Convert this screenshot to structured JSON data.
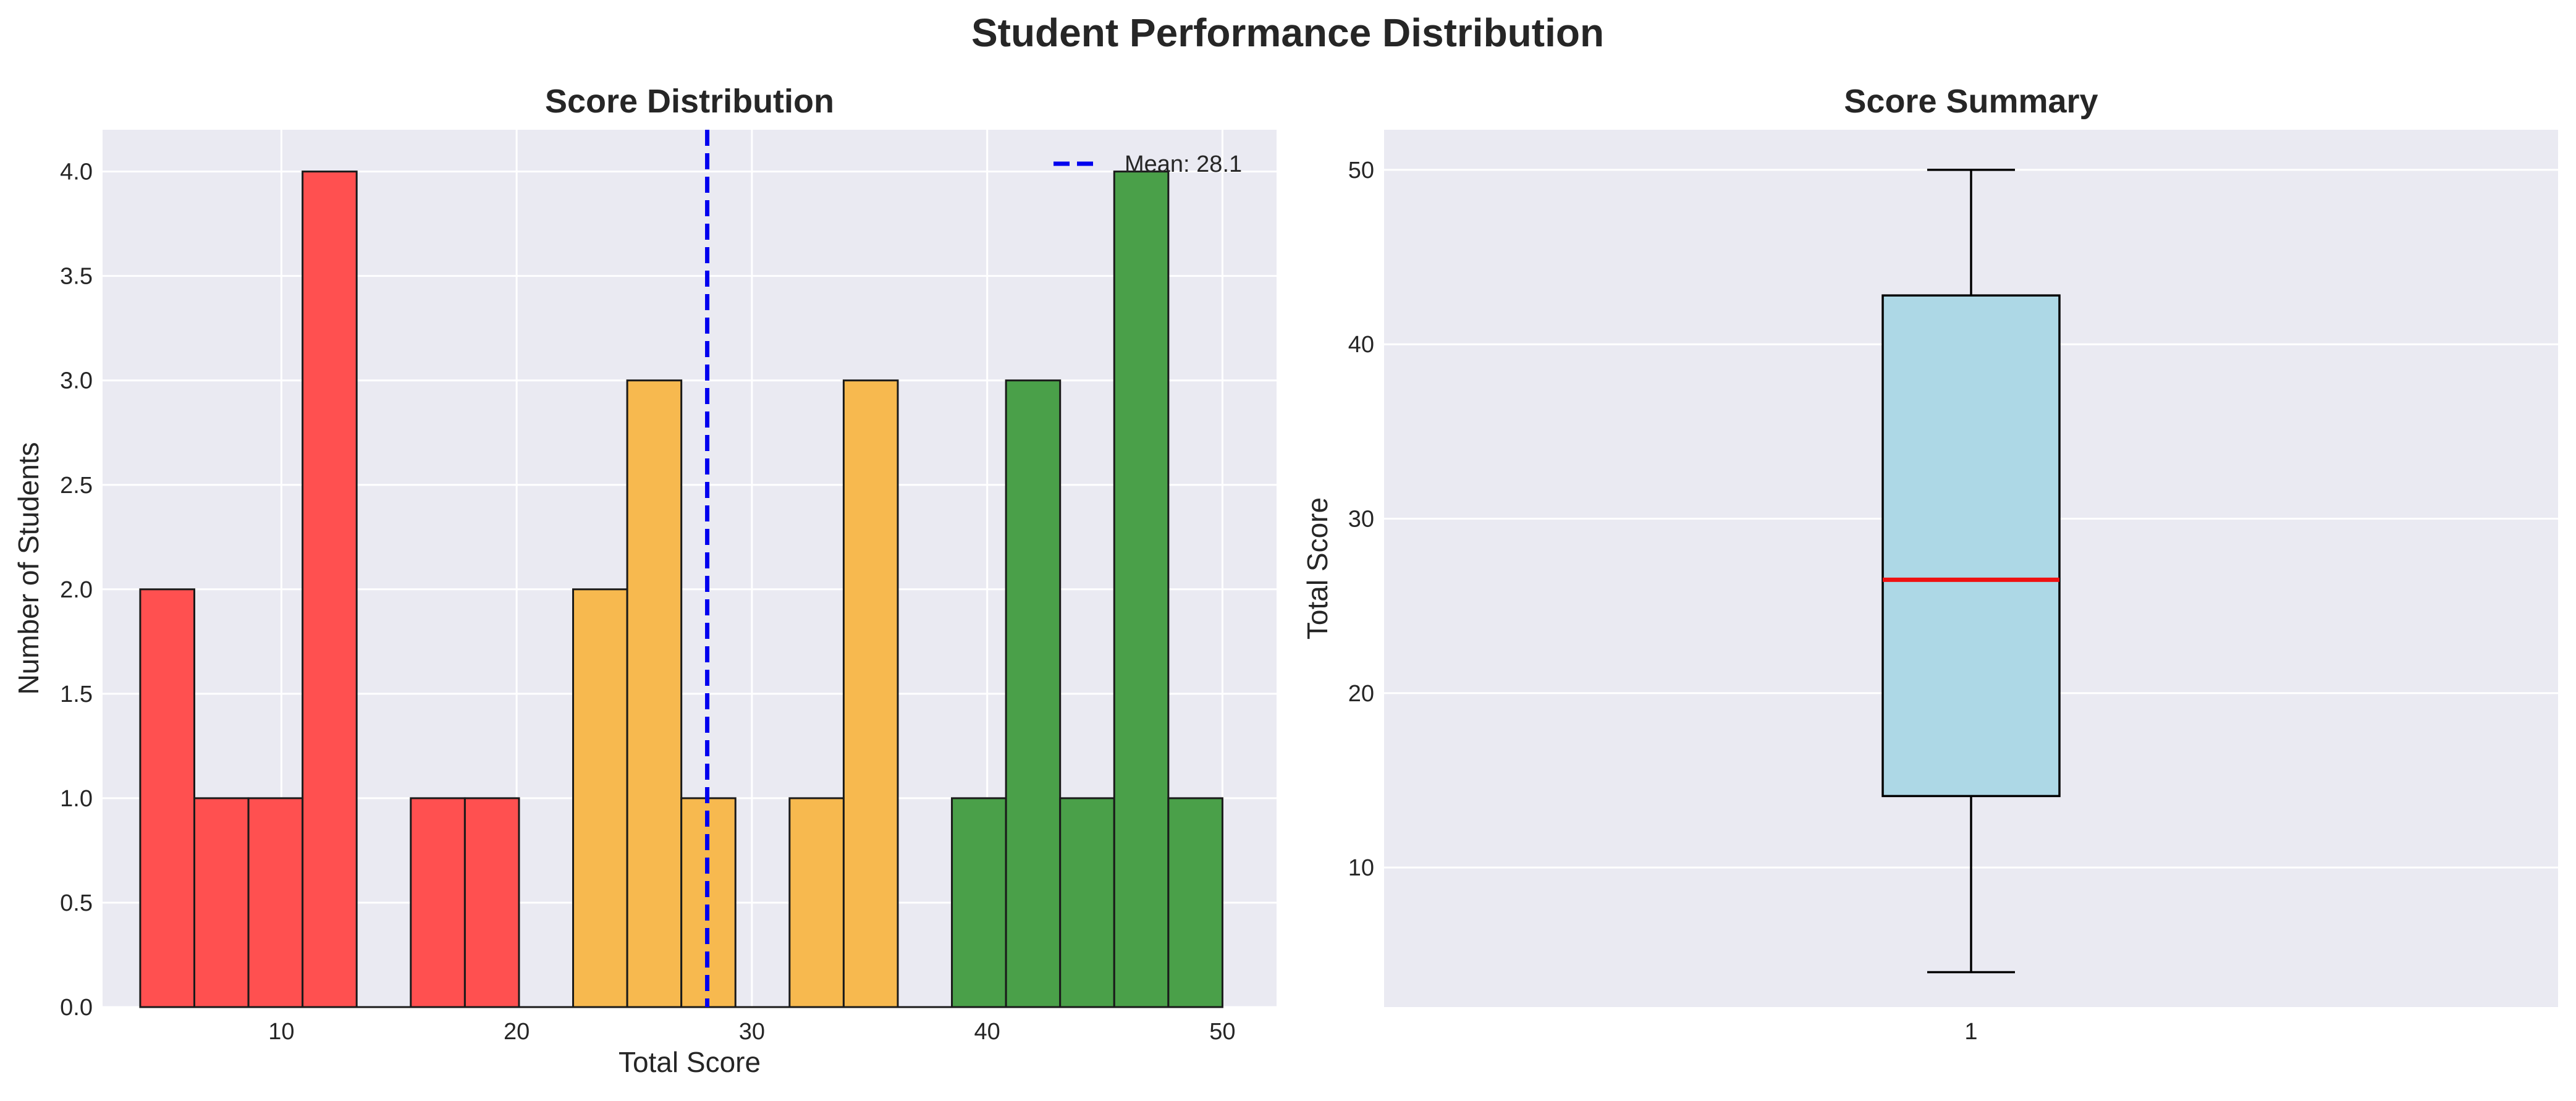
{
  "figure": {
    "suptitle": "Student Performance Distribution"
  },
  "colors": {
    "background": "#eaeaf2",
    "grid": "#ffffff",
    "low": "#ff4c4c",
    "mid": "#f7b84b",
    "high": "#469e45",
    "mean_line": "#0000ee",
    "box_fill": "#add8e6",
    "median": "#ee1111"
  },
  "chart_data": [
    {
      "type": "bar",
      "subtype": "histogram",
      "title": "Score Distribution",
      "xlabel": "Total Score",
      "ylabel": "Number of Students",
      "xlim": [
        2.4,
        52.3
      ],
      "ylim": [
        0,
        4.2
      ],
      "xticks": [
        "10",
        "20",
        "30",
        "40",
        "50"
      ],
      "xtick_values": [
        10,
        20,
        30,
        40,
        50
      ],
      "yticks": [
        "0.0",
        "0.5",
        "1.0",
        "1.5",
        "2.0",
        "2.5",
        "3.0",
        "3.5",
        "4.0"
      ],
      "ytick_values": [
        0,
        0.5,
        1,
        1.5,
        2,
        2.5,
        3,
        3.5,
        4
      ],
      "bins": [
        {
          "start": 4.0,
          "end": 6.3,
          "count": 2,
          "group": "low"
        },
        {
          "start": 6.3,
          "end": 8.6,
          "count": 1,
          "group": "low"
        },
        {
          "start": 8.6,
          "end": 10.9,
          "count": 1,
          "group": "low"
        },
        {
          "start": 10.9,
          "end": 13.2,
          "count": 4,
          "group": "low"
        },
        {
          "start": 13.2,
          "end": 15.5,
          "count": 0,
          "group": "low"
        },
        {
          "start": 15.5,
          "end": 17.8,
          "count": 1,
          "group": "low"
        },
        {
          "start": 17.8,
          "end": 20.1,
          "count": 1,
          "group": "low"
        },
        {
          "start": 20.1,
          "end": 22.4,
          "count": 0,
          "group": "low"
        },
        {
          "start": 22.4,
          "end": 24.7,
          "count": 2,
          "group": "mid"
        },
        {
          "start": 24.7,
          "end": 27.0,
          "count": 3,
          "group": "mid"
        },
        {
          "start": 27.0,
          "end": 29.3,
          "count": 1,
          "group": "mid"
        },
        {
          "start": 29.3,
          "end": 31.6,
          "count": 0,
          "group": "mid"
        },
        {
          "start": 31.6,
          "end": 33.9,
          "count": 1,
          "group": "mid"
        },
        {
          "start": 33.9,
          "end": 36.2,
          "count": 3,
          "group": "mid"
        },
        {
          "start": 36.2,
          "end": 38.5,
          "count": 0,
          "group": "mid"
        },
        {
          "start": 38.5,
          "end": 40.8,
          "count": 1,
          "group": "high"
        },
        {
          "start": 40.8,
          "end": 43.1,
          "count": 3,
          "group": "high"
        },
        {
          "start": 43.1,
          "end": 45.4,
          "count": 1,
          "group": "high"
        },
        {
          "start": 45.4,
          "end": 47.7,
          "count": 4,
          "group": "high"
        },
        {
          "start": 47.7,
          "end": 50.0,
          "count": 1,
          "group": "high"
        }
      ],
      "mean": 28.1,
      "legend": {
        "label": "Mean: 28.1",
        "placement": "top-right"
      },
      "grid": true
    },
    {
      "type": "box",
      "title": "Score Summary",
      "xlabel": "",
      "ylabel": "Total Score",
      "ylim": [
        2,
        52.3
      ],
      "yticks": [
        "10",
        "20",
        "30",
        "40",
        "50"
      ],
      "ytick_values": [
        10,
        20,
        30,
        40,
        50
      ],
      "categories": [
        "1"
      ],
      "stats": {
        "min": 4,
        "q1": 14.1,
        "median": 26.5,
        "q3": 42.8,
        "max": 50
      },
      "grid": true
    }
  ]
}
